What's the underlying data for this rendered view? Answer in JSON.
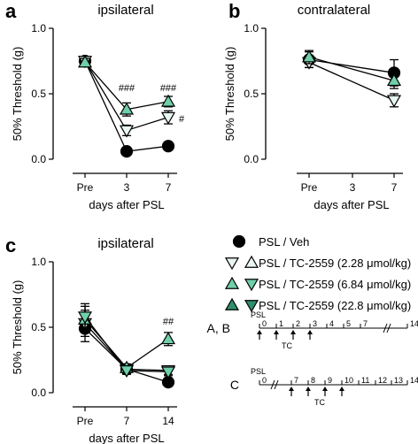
{
  "colors": {
    "veh": "#000000",
    "tc_light": "#e8f6ef",
    "tc_mid": "#6fcfa8",
    "tc_dark": "#2f8f6a"
  },
  "chart_data": [
    {
      "panel_letter": "a",
      "type": "line",
      "title": "ipsilateral",
      "xlabel": "days after PSL",
      "ylabel": "50% Threshold (g)",
      "categories": [
        "Pre",
        "3",
        "7"
      ],
      "ylim": [
        0,
        1.0
      ],
      "yticks": [
        "0.0",
        "0.5",
        "1.0"
      ],
      "series": [
        {
          "name": "PSL / Veh",
          "marker": "circle",
          "fill": "black",
          "values": [
            0.75,
            0.06,
            0.1
          ],
          "errors": [
            0.03,
            0.02,
            0.02
          ]
        },
        {
          "name": "PSL / TC-2559 (2.28 μmol/kg)",
          "marker": "triangle-down",
          "fill": "light",
          "values": [
            0.75,
            0.22,
            0.32
          ],
          "errors": [
            0.03,
            0.04,
            0.05
          ]
        },
        {
          "name": "PSL / TC-2559 (6.84 μmol/kg)",
          "marker": "triangle-up",
          "fill": "mid",
          "values": [
            0.74,
            0.38,
            0.44
          ],
          "errors": [
            0.03,
            0.05,
            0.04
          ]
        }
      ],
      "annotations": [
        {
          "x": "3",
          "y": 0.52,
          "text": "###"
        },
        {
          "x": "7",
          "y": 0.52,
          "text": "###"
        },
        {
          "x": "7",
          "y": 0.31,
          "text": "#"
        }
      ]
    },
    {
      "panel_letter": "b",
      "type": "line",
      "title": "contralateral",
      "xlabel": "days after PSL",
      "ylabel": "50% Threshold (g)",
      "categories": [
        "Pre",
        "3",
        "7"
      ],
      "ylim": [
        0,
        1.0
      ],
      "yticks": [
        "0.0",
        "0.5",
        "1.0"
      ],
      "series": [
        {
          "name": "PSL / Veh",
          "marker": "circle",
          "fill": "black",
          "values": [
            0.76,
            null,
            0.66
          ],
          "errors": [
            0.06,
            null,
            0.1
          ]
        },
        {
          "name": "PSL / TC-2559 (2.28 μmol/kg)",
          "marker": "triangle-down",
          "fill": "light",
          "values": [
            0.74,
            null,
            0.45
          ],
          "errors": [
            0.04,
            null,
            0.05
          ]
        },
        {
          "name": "PSL / TC-2559 (6.84 μmol/kg)",
          "marker": "triangle-up",
          "fill": "mid",
          "values": [
            0.78,
            null,
            0.6
          ],
          "errors": [
            0.05,
            null,
            0.06
          ]
        }
      ]
    },
    {
      "panel_letter": "c",
      "type": "line",
      "title": "ipsilateral",
      "xlabel": "days after PSL",
      "ylabel": "50% Threshold (g)",
      "categories": [
        "Pre",
        "7",
        "14"
      ],
      "ylim": [
        0,
        1.0
      ],
      "yticks": [
        "0.0",
        "0.5",
        "1.0"
      ],
      "series": [
        {
          "name": "PSL / Veh",
          "marker": "circle",
          "fill": "black",
          "values": [
            0.49,
            0.18,
            0.08
          ],
          "errors": [
            0.1,
            0.03,
            0.02
          ]
        },
        {
          "name": "PSL / TC-2559 (2.28 μmol/kg)",
          "marker": "triangle-down",
          "fill": "light",
          "values": [
            0.53,
            0.18,
            0.17
          ],
          "errors": [
            0.1,
            0.03,
            0.03
          ]
        },
        {
          "name": "PSL / TC-2559 (6.84 μmol/kg)",
          "marker": "triangle-up",
          "fill": "mid",
          "values": [
            0.56,
            0.19,
            0.41
          ],
          "errors": [
            0.1,
            0.03,
            0.05
          ]
        },
        {
          "name": "PSL / TC-2559 (22.8 μmol/kg)",
          "marker": "triangle-down",
          "fill": "mid",
          "values": [
            0.58,
            0.17,
            0.16
          ],
          "errors": [
            0.1,
            0.03,
            0.03
          ]
        }
      ],
      "annotations": [
        {
          "x": "14",
          "y": 0.52,
          "text": "##"
        }
      ]
    }
  ],
  "legend": {
    "items": [
      {
        "label": "PSL / Veh",
        "markers": [
          "circle-black"
        ]
      },
      {
        "label": "PSL / TC-2559 (2.28 μmol/kg)",
        "markers": [
          "triangle-down-light",
          "triangle-up-light"
        ]
      },
      {
        "label": "PSL / TC-2559 (6.84 μmol/kg)",
        "markers": [
          "triangle-up-mid",
          "triangle-down-mid"
        ]
      },
      {
        "label": "PSL / TC-2559 (22.8 μmol/kg)",
        "markers": [
          "triangle-up-dark",
          "triangle-down-dark"
        ]
      }
    ]
  },
  "timeline": {
    "psl_label": "PSL",
    "tc_label": "TC",
    "rows": [
      {
        "label": "A, B",
        "ticks": [
          "0",
          "1",
          "2",
          "3",
          "4",
          "5",
          "7",
          "14"
        ],
        "break_before": "14",
        "arrows_at": [
          "0",
          "1",
          "2",
          "3"
        ]
      },
      {
        "label": "C",
        "ticks": [
          "0",
          "7",
          "8",
          "9",
          "10",
          "11",
          "12",
          "13",
          "14"
        ],
        "break_before": "7",
        "arrows_at": [
          "7",
          "8",
          "9",
          "10"
        ]
      }
    ]
  }
}
